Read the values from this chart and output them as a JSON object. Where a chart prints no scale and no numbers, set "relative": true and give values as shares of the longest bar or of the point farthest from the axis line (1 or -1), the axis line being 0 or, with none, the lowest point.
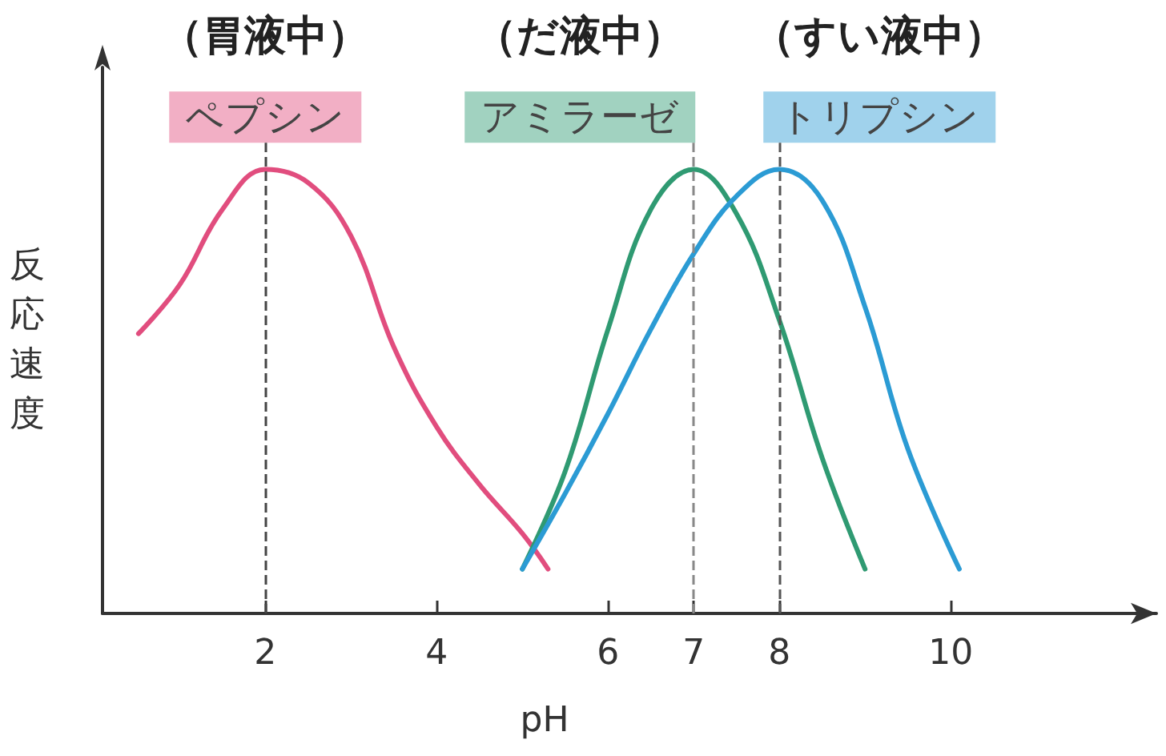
{
  "chart_data": {
    "type": "line",
    "xlabel": "pH",
    "ylabel": "反応速度",
    "relative": true,
    "xlim": [
      0.1,
      12.4
    ],
    "xticks": [
      2,
      4,
      6,
      7,
      8,
      10
    ],
    "grid": false,
    "legend": false,
    "marker": "none",
    "line_style": "solid",
    "series": [
      {
        "name": "ペプシン",
        "color": "#e14d7e",
        "x": [
          0.52,
          1.0,
          1.5,
          2.0,
          2.5,
          3.0,
          3.5,
          4.0,
          4.5,
          5.0,
          5.3
        ],
        "values": [
          0.63,
          0.74,
          0.91,
          1.0,
          0.97,
          0.85,
          0.6,
          0.42,
          0.29,
          0.18,
          0.1
        ]
      },
      {
        "name": "アミラーゼ",
        "color": "#2f9a72",
        "x": [
          5.0,
          5.5,
          6.0,
          6.5,
          7.0,
          7.5,
          8.0,
          8.5,
          9.0
        ],
        "values": [
          0.1,
          0.32,
          0.64,
          0.91,
          1.0,
          0.9,
          0.66,
          0.35,
          0.1
        ]
      },
      {
        "name": "トリプシン",
        "color": "#2b9bd4",
        "x": [
          5.0,
          5.5,
          6.0,
          6.5,
          7.0,
          7.5,
          8.0,
          8.5,
          9.0,
          9.5,
          10.1
        ],
        "values": [
          0.1,
          0.27,
          0.45,
          0.64,
          0.81,
          0.94,
          1.0,
          0.93,
          0.69,
          0.37,
          0.1
        ]
      }
    ],
    "ref_lines": [
      {
        "axis": "x",
        "value": 2,
        "color": "#444444",
        "line_style": "dashed"
      },
      {
        "axis": "x",
        "value": 7,
        "color": "#888888",
        "line_style": "dashed"
      },
      {
        "axis": "x",
        "value": 8,
        "color": "#555555",
        "line_style": "dashed"
      }
    ],
    "annotations": [
      "（胃液中）",
      "（だ液中）",
      "（すい液中）"
    ]
  }
}
